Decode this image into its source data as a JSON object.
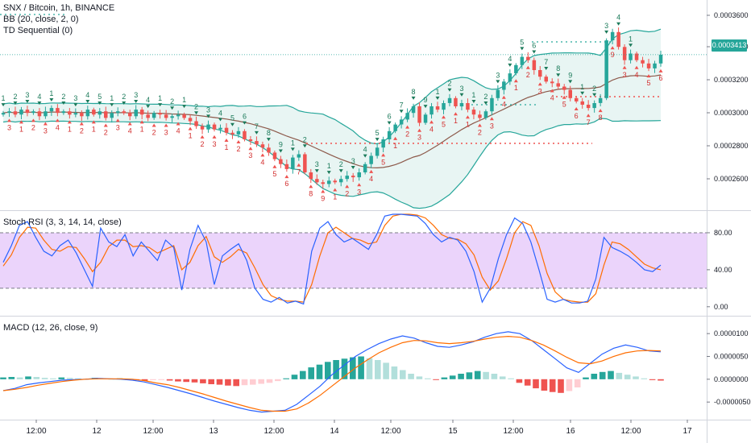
{
  "legends": {
    "main": [
      "SNX / Bitcoin, 1h, BINANCE",
      "BB (20, close, 2, 0)",
      "TD Sequential (0)"
    ],
    "rsi": "Stoch RSI (3, 3, 14, 14, close)",
    "macd": "MACD (12, 26, close, 9)"
  },
  "last_price": "0.0003413",
  "price_axis": [
    "0.0003600",
    "0.0003400",
    "0.0003200",
    "0.0003000",
    "0.0002800",
    "0.0002600"
  ],
  "rsi_axis": [
    "80.00",
    "40.00",
    "0.00"
  ],
  "macd_axis": [
    "0.0000100",
    "0.0000050",
    "0.0000000",
    "-0.0000050"
  ],
  "time_axis": [
    "12:00",
    "12",
    "12:00",
    "13",
    "12:00",
    "14",
    "12:00",
    "15",
    "12:00",
    "16",
    "12:00",
    "17"
  ],
  "colors": {
    "up": "#26a69a",
    "down": "#ef5350",
    "bb_fill": "#e8f5f3",
    "bb_band": "#26a69a",
    "basis": "#8d5a4b",
    "rsi_k": "#2962ff",
    "rsi_d": "#ff6d00",
    "rsi_bg": "#e8ccfa",
    "macd": "#2962ff",
    "signal": "#ff6d00"
  },
  "chart_data": [
    {
      "type": "candlestick",
      "title": "SNX / Bitcoin, 1h, BINANCE",
      "ylim": [
        0.00025,
        0.000372
      ],
      "close": [
        0.000306,
        0.000307,
        0.000305,
        0.000308,
        0.000306,
        0.000307,
        0.000304,
        0.000307,
        0.000309,
        0.000306,
        0.000307,
        0.000305,
        0.000306,
        0.000304,
        0.000308,
        0.000305,
        0.000307,
        0.000303,
        0.000306,
        0.000307,
        0.000306,
        0.000304,
        0.000308,
        0.000305,
        0.000303,
        0.000306,
        0.000305,
        0.000303,
        0.000304,
        0.000305,
        0.000303,
        0.000301,
        0.000298,
        0.000296,
        0.000299,
        0.000296,
        0.000297,
        0.000294,
        0.000293,
        0.000295,
        0.00029,
        0.000289,
        0.000287,
        0.000285,
        0.000282,
        0.000278,
        0.000275,
        0.000272,
        0.000279,
        0.000281,
        0.00027,
        0.000266,
        0.000264,
        0.000263,
        0.000265,
        0.000264,
        0.000266,
        0.000268,
        0.000267,
        0.00027,
        0.000275,
        0.00028,
        0.000285,
        0.00029,
        0.000295,
        0.000299,
        0.000302,
        0.000306,
        0.00031,
        0.0003,
        0.000305,
        0.00031,
        0.000308,
        0.000312,
        0.000315,
        0.00031,
        0.000312,
        0.000308,
        0.000305,
        0.000303,
        0.000307,
        0.000315,
        0.00032,
        0.000325,
        0.00033,
        0.000335,
        0.00034,
        0.000338,
        0.000332,
        0.000328,
        0.000325,
        0.000324,
        0.000322,
        0.00032,
        0.000315,
        0.000313,
        0.000311,
        0.000309,
        0.000312,
        0.000315,
        0.00035,
        0.000355,
        0.000346,
        0.000338,
        0.000342,
        0.000338,
        0.000336,
        0.000333,
        0.000336,
        0.0003413
      ]
    },
    {
      "type": "line",
      "title": "Stoch RSI (3, 3, 14, 14, close)",
      "ylim": [
        -8,
        100
      ],
      "series": [
        {
          "name": "K",
          "values": [
            48,
            66,
            88,
            92,
            75,
            60,
            55,
            66,
            72,
            58,
            40,
            22,
            85,
            70,
            65,
            78,
            55,
            70,
            60,
            50,
            72,
            64,
            18,
            62,
            88,
            70,
            24,
            55,
            62,
            68,
            50,
            20,
            8,
            5,
            10,
            4,
            6,
            3,
            60,
            85,
            92,
            78,
            70,
            74,
            68,
            62,
            78,
            98,
            100,
            100,
            99,
            98,
            90,
            78,
            70,
            75,
            72,
            60,
            38,
            5,
            20,
            52,
            78,
            96,
            90,
            70,
            40,
            8,
            5,
            8,
            4,
            4,
            6,
            30,
            75,
            64,
            60,
            55,
            48,
            40,
            38,
            45
          ]
        },
        {
          "name": "D",
          "values": [
            44,
            56,
            75,
            86,
            85,
            72,
            62,
            60,
            65,
            64,
            52,
            38,
            48,
            65,
            72,
            72,
            65,
            66,
            64,
            58,
            62,
            66,
            40,
            48,
            66,
            76,
            54,
            48,
            54,
            62,
            58,
            42,
            24,
            12,
            8,
            6,
            6,
            5,
            24,
            55,
            80,
            86,
            80,
            74,
            72,
            68,
            70,
            88,
            98,
            100,
            100,
            99,
            96,
            88,
            78,
            74,
            73,
            68,
            56,
            32,
            18,
            28,
            52,
            80,
            92,
            88,
            66,
            36,
            16,
            8,
            6,
            5,
            5,
            14,
            45,
            70,
            68,
            62,
            54,
            46,
            42,
            40
          ]
        }
      ]
    },
    {
      "type": "bar",
      "title": "MACD (12, 26, close, 9)",
      "ylim": [
        -8.5e-06,
        1.25e-05
      ],
      "histogram": [
        4e-07,
        5e-07,
        4e-07,
        6e-07,
        5e-07,
        3e-07,
        2e-07,
        4e-07,
        3e-07,
        2e-07,
        1e-07,
        3e-07,
        2e-07,
        1e-07,
        2e-07,
        -1e-07,
        -2e-07,
        -3e-07,
        -2e-07,
        -1e-07,
        -3e-07,
        -5e-07,
        -6e-07,
        -7e-07,
        -9e-07,
        -1.1e-06,
        -1.2e-06,
        -1.4e-06,
        -1.5e-06,
        -1.3e-06,
        -1.2e-06,
        -1e-06,
        -8e-07,
        -4e-07,
        2e-07,
        1e-06,
        1.8e-06,
        2.6e-06,
        3.2e-06,
        3.8e-06,
        4.2e-06,
        4.5e-06,
        4.8e-06,
        5e-06,
        4.6e-06,
        4.2e-06,
        3.6e-06,
        2.8e-06,
        2e-06,
        1.2e-06,
        6e-07,
        2e-07,
        -1e-07,
        4e-07,
        8e-07,
        1.2e-06,
        1.5e-06,
        1.8e-06,
        1.6e-06,
        1.2e-06,
        6e-07,
        2e-07,
        -8e-07,
        -1.4e-06,
        -2e-06,
        -2.5e-06,
        -2.8e-06,
        -3e-06,
        -2.6e-06,
        -1.8e-06,
        4e-07,
        1.2e-06,
        1.6e-06,
        1.8e-06,
        1.4e-06,
        1e-06,
        6e-07,
        2e-07,
        -2e-07,
        -3e-07
      ],
      "series": [
        {
          "name": "MACD",
          "values": [
            -2.5e-06,
            -2e-06,
            -1.2e-06,
            -8e-07,
            -5e-07,
            -2e-07,
            -1e-07,
            0.0,
            2e-07,
            1e-07,
            0.0,
            -2e-07,
            -6e-07,
            -1.2e-06,
            -1.8e-06,
            -2.5e-06,
            -3.2e-06,
            -4e-06,
            -4.8e-06,
            -5.5e-06,
            -6.2e-06,
            -6.8e-06,
            -7.2e-06,
            -7e-06,
            -6.8e-06,
            -5.5e-06,
            -3.5e-06,
            -1.5e-06,
            1e-06,
            3e-06,
            5e-06,
            6.5e-06,
            7.8e-06,
            8.8e-06,
            9.5e-06,
            9e-06,
            8e-06,
            7.2e-06,
            7e-06,
            7.5e-06,
            8.2e-06,
            9.2e-06,
            1e-05,
            1.04e-05,
            1e-05,
            8.5e-06,
            6.5e-06,
            4.5e-06,
            2.5e-06,
            1.5e-06,
            3.5e-06,
            5.5e-06,
            6.8e-06,
            7.5e-06,
            7e-06,
            6.2e-06,
            6e-06
          ]
        },
        {
          "name": "Signal",
          "values": [
            -2.5e-06,
            -2.2e-06,
            -1.8e-06,
            -1.3e-06,
            -9e-07,
            -5e-07,
            -2e-07,
            0.0,
            1e-07,
            1e-07,
            1e-07,
            0.0,
            -3e-07,
            -8e-07,
            -1.2e-06,
            -1.8e-06,
            -2.5e-06,
            -3.2e-06,
            -4e-06,
            -4.8e-06,
            -5.5e-06,
            -6.2e-06,
            -6.8e-06,
            -7e-06,
            -7e-06,
            -6.5e-06,
            -5.2e-06,
            -3.5e-06,
            -1.5e-06,
            5e-07,
            2.5e-06,
            4.2e-06,
            5.8e-06,
            7e-06,
            8e-06,
            8.5e-06,
            8.4e-06,
            8e-06,
            7.8e-06,
            8e-06,
            8.3e-06,
            8.8e-06,
            9.2e-06,
            9.4e-06,
            9.2e-06,
            8.5e-06,
            7.5e-06,
            6.2e-06,
            4.8e-06,
            3.6e-06,
            3.4e-06,
            4e-06,
            5e-06,
            5.8e-06,
            6.2e-06,
            6.3e-06,
            6.2e-06
          ]
        }
      ]
    }
  ],
  "td_labels": {
    "sell": [
      "1",
      "2",
      "3",
      "4",
      "1",
      "2",
      "3",
      "4",
      "5",
      "1",
      "2",
      "3",
      "4",
      "1",
      "2",
      "1",
      "2",
      "3",
      "4",
      "5",
      "6",
      "7",
      "8",
      "9",
      "1",
      "2",
      "3",
      "1",
      "2",
      "3",
      "4",
      "5",
      "6",
      "7",
      "8",
      "9",
      "1",
      "2",
      "3",
      "1",
      "2",
      "3",
      "4",
      "5",
      "6",
      "7",
      "8",
      "9",
      "1",
      "2",
      "3",
      "4",
      "1"
    ],
    "buy": [
      "3",
      "1",
      "2",
      "3",
      "4",
      "1",
      "2",
      "1",
      "2",
      "3",
      "4",
      "1",
      "2",
      "3",
      "4",
      "1",
      "2",
      "3",
      "1",
      "2",
      "3",
      "4",
      "5",
      "6",
      "7",
      "8",
      "9",
      "1",
      "2",
      "3",
      "4",
      "5",
      "1",
      "2",
      "3",
      "4",
      "5",
      "1",
      "1",
      "2",
      "3",
      "4",
      "1",
      "2",
      "3",
      "4",
      "5",
      "6",
      "7",
      "8",
      "9",
      "3",
      "4",
      "5",
      "6"
    ]
  }
}
